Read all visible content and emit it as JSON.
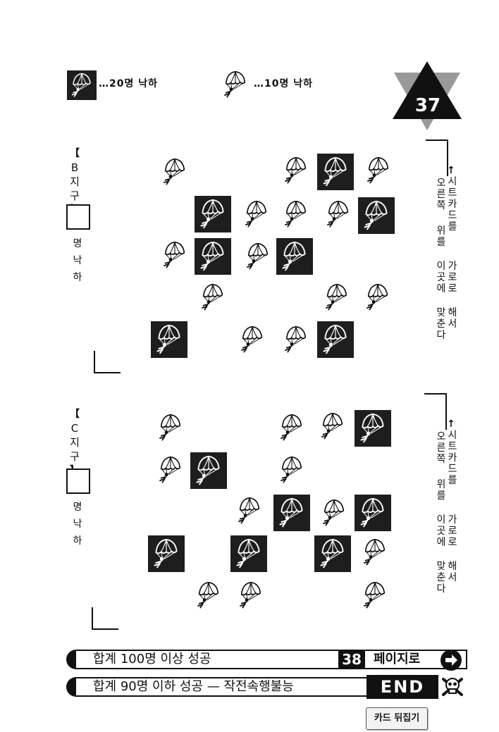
{
  "page_number": "37",
  "legend": {
    "big_label": "…20명 낙하",
    "small_label": "…10명 낙하"
  },
  "districts": [
    {
      "id": "B",
      "name_chars": [
        "B",
        "지",
        "구"
      ],
      "answer_value": "",
      "drop_chars": [
        "명",
        "낙",
        "하"
      ]
    },
    {
      "id": "C",
      "name_chars": [
        "C",
        "지",
        "구"
      ],
      "answer_value": "",
      "drop_chars": [
        "명",
        "낙",
        "하"
      ]
    }
  ],
  "instruction": {
    "arrow": "↑",
    "columns": [
      "시트카드를",
      "가로로",
      "해서",
      "오른쪽",
      "위를",
      "이곳에",
      "맞춘다"
    ]
  },
  "outcomes": [
    {
      "text": "합계 100명 이상 성공",
      "page": "38",
      "goto": "페이지로"
    },
    {
      "text": "합계 90명 이하 성공 — 작전속행불능",
      "end": "END"
    }
  ],
  "flip_button": "카드 뒤집기",
  "icons": {
    "troop_small": "paratrooper-icon",
    "troop_big": "paratrooper-boxed-icon",
    "next": "arrow-right-circle-icon",
    "end": "skull-crossbones-icon"
  },
  "colors": {
    "ink": "#111111",
    "paper": "#ffffff"
  }
}
